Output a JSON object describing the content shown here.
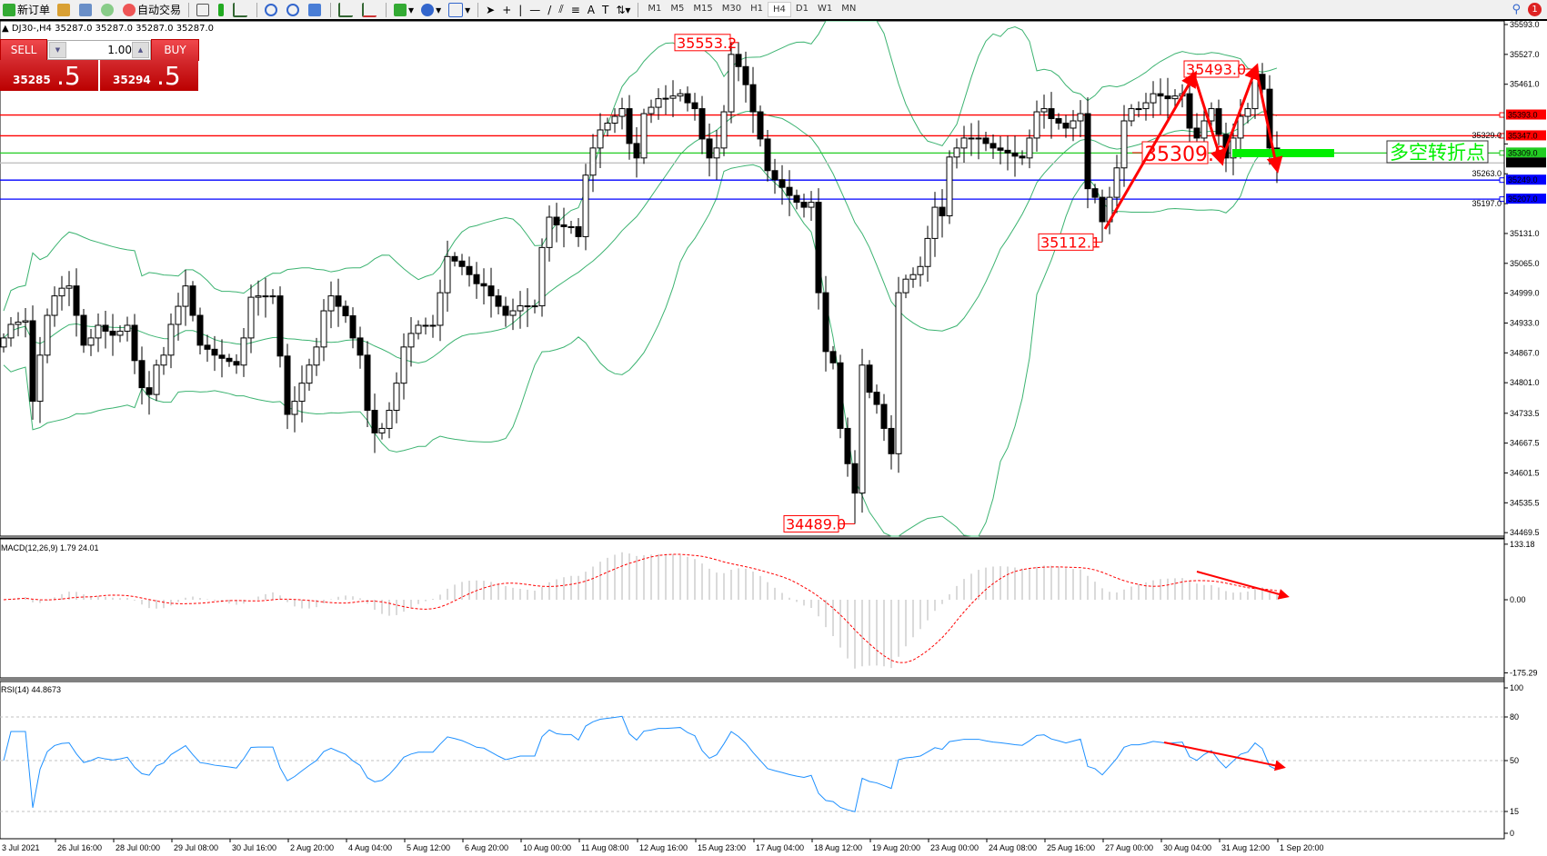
{
  "toolbar": {
    "new_order_label": "新订单",
    "auto_trading_label": "自动交易",
    "icons": [
      "new-order-icon",
      "history-icon",
      "terminal-icon",
      "signals-icon",
      "auto-trading-icon",
      "bar-chart-icon",
      "candlestick-icon",
      "line-chart-icon",
      "zoom-in-icon",
      "zoom-out-icon",
      "tile-icon",
      "autoscroll-icon",
      "chart-shift-icon",
      "indicators-icon",
      "periods-icon",
      "templates-icon",
      "cursor-icon",
      "crosshair-icon",
      "vertical-line-icon",
      "horizontal-line-icon",
      "trendline-icon",
      "equidistant-channel-icon",
      "fibonacci-icon",
      "text-icon",
      "text-label-icon",
      "arrows-icon"
    ],
    "timeframes": [
      "M1",
      "M5",
      "M15",
      "M30",
      "H1",
      "H4",
      "D1",
      "W1",
      "MN"
    ],
    "active_timeframe": "H4",
    "notification_count": "1"
  },
  "chart": {
    "title": "DJ30-,H4  35287.0 35287.0 35287.0 35287.0",
    "symbol": "DJ30-",
    "timeframe": "H4"
  },
  "trade_panel": {
    "sell_label": "SELL",
    "buy_label": "BUY",
    "volume": "1.00",
    "sell_price_main": "35285",
    "sell_price_big": ".5",
    "buy_price_main": "35294",
    "buy_price_big": ".5"
  },
  "price_axis": [
    "35593.0",
    "35527.0",
    "35461.0",
    "35329.0",
    "35263.0",
    "35197.0",
    "35131.0",
    "35065.0",
    "34999.0",
    "34933.0",
    "34867.0",
    "34801.0",
    "34733.5",
    "34667.5",
    "34601.5",
    "34535.5",
    "34469.5"
  ],
  "levels": [
    {
      "price": "35393.0",
      "color": "#ff0000"
    },
    {
      "price": "35347.0",
      "color": "#ff0000"
    },
    {
      "price": "35309.0",
      "color": "#22cc22"
    },
    {
      "price": "35287.0",
      "color": "#000000",
      "line": "#c0c0c0"
    },
    {
      "price": "35249.0",
      "color": "#0000ff"
    },
    {
      "price": "35207.0",
      "color": "#0000ff"
    }
  ],
  "annotations": {
    "high_label": "35553.2",
    "low_label": "34489.0",
    "swing_low_label": "35112.1",
    "neckline_label": "35309.0",
    "swing_high_label": "35493.0",
    "pivot_text": "多空转折点"
  },
  "colors": {
    "bands": "#3cb371",
    "arrow": "#ff0000",
    "rsi": "#1e90ff",
    "macd_hist": "#b4b4b4",
    "macd_signal": "#ff0000",
    "pivot_bar": "#00ee00"
  },
  "macd": {
    "label": "MACD(12,26,9) 1.79 24.01",
    "axis": [
      "133.18",
      "0.00",
      "-175.29"
    ]
  },
  "rsi": {
    "label": "RSI(14) 44.8673",
    "axis": [
      "100",
      "80",
      "50",
      "15",
      "0"
    ]
  },
  "time_axis": [
    "3 Jul 2021",
    "26 Jul 16:00",
    "28 Jul 00:00",
    "29 Jul 08:00",
    "30 Jul 16:00",
    "2 Aug 20:00",
    "4 Aug 04:00",
    "5 Aug 12:00",
    "6 Aug 20:00",
    "10 Aug 00:00",
    "11 Aug 08:00",
    "12 Aug 16:00",
    "15 Aug 23:00",
    "17 Aug 04:00",
    "18 Aug 12:00",
    "19 Aug 20:00",
    "23 Aug 00:00",
    "24 Aug 08:00",
    "25 Aug 16:00",
    "27 Aug 00:00",
    "30 Aug 04:00",
    "31 Aug 12:00",
    "1 Sep 20:00"
  ],
  "chart_data": {
    "type": "candlestick",
    "indicators": [
      "Bollinger Bands",
      "MACD(12,26,9)",
      "RSI(14)"
    ],
    "close": [
      34900,
      34930,
      34935,
      34938,
      34760,
      34862,
      34950,
      34993,
      35010,
      35015,
      34950,
      34884,
      34900,
      34928,
      34915,
      34906,
      34915,
      34928,
      34850,
      34790,
      34775,
      34840,
      34862,
      34930,
      34970,
      35015,
      34950,
      34884,
      34875,
      34862,
      34855,
      34848,
      34840,
      34900,
      34990,
      34993,
      34993,
      34993,
      34860,
      34731,
      34760,
      34800,
      34840,
      34880,
      34960,
      34993,
      34970,
      34949,
      34900,
      34862,
      34740,
      34690,
      34700,
      34740,
      34800,
      34880,
      34910,
      34928,
      34928,
      34928,
      35000,
      35080,
      35070,
      35058,
      35040,
      35020,
      35015,
      34993,
      34970,
      34950,
      34960,
      34971,
      34971,
      34971,
      35100,
      35167,
      35150,
      35146,
      35146,
      35124,
      35260,
      35320,
      35360,
      35375,
      35390,
      35407,
      35330,
      35298,
      35396,
      35410,
      35429,
      35430,
      35435,
      35440,
      35420,
      35407,
      35340,
      35298,
      35320,
      35400,
      35527,
      35500,
      35460,
      35400,
      35340,
      35270,
      35250,
      35233,
      35215,
      35200,
      35189,
      35200,
      35000,
      34870,
      34845,
      34700,
      34622,
      34557,
      34840,
      34780,
      34753,
      34700,
      34644,
      35000,
      35030,
      35040,
      35058,
      35120,
      35189,
      35170,
      35300,
      35320,
      35342,
      35342,
      35342,
      35330,
      35320,
      35315,
      35309,
      35302,
      35298,
      35342,
      35400,
      35407,
      35385,
      35375,
      35364,
      35380,
      35396,
      35230,
      35211,
      35157,
      35211,
      35276,
      35380,
      35407,
      35407,
      35420,
      35440,
      35435,
      35429,
      35435,
      35440,
      35364,
      35342,
      35380,
      35407,
      35350,
      35298,
      35342,
      35390,
      35407,
      35483,
      35450,
      35320,
      35287
    ]
  }
}
